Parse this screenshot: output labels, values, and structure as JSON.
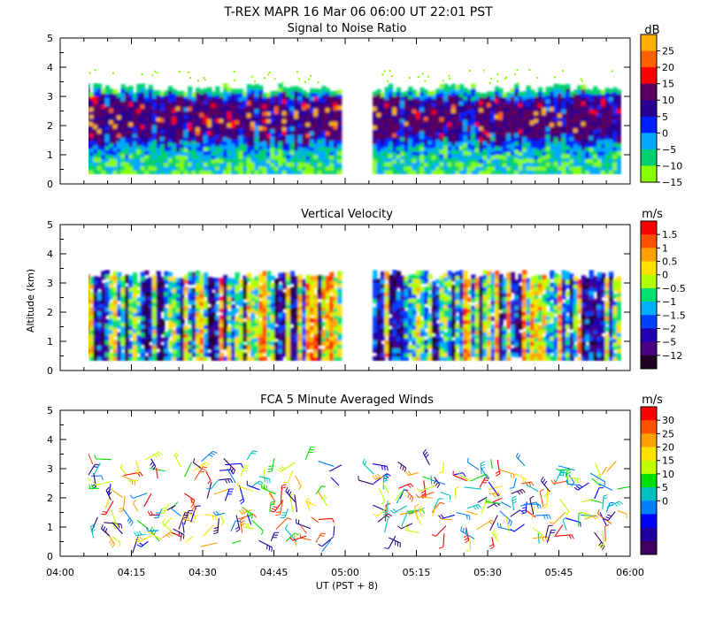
{
  "title": "T-REX   MAPR 16 Mar 06   06:00 UT   22:01   PST",
  "xlabel": "UT  (PST + 8)",
  "ylabel": "Altitude  (km)",
  "x_ticks": [
    "04:00",
    "04:15",
    "04:30",
    "04:45",
    "05:00",
    "05:15",
    "05:30",
    "05:45",
    "06:00"
  ],
  "y_ticks": [
    "0",
    "1",
    "2",
    "3",
    "4",
    "5"
  ],
  "chart_data": [
    {
      "type": "heatmap",
      "title": "Signal to Noise Ratio",
      "unit": "dB",
      "ylim": [
        0,
        5
      ],
      "xlim_minutes": [
        0,
        120
      ],
      "data_gap_minutes": [
        60,
        65
      ],
      "colorbar_labels": [
        "25",
        "20",
        "15",
        "10",
        "5",
        "0",
        "−5",
        "−10",
        "−15"
      ],
      "colorbar_colors": [
        "#ffb000",
        "#ff6000",
        "#ff0000",
        "#5a0060",
        "#2a0090",
        "#0020ff",
        "#00a8ff",
        "#00d070",
        "#88ff00"
      ]
    },
    {
      "type": "heatmap",
      "title": "Vertical Velocity",
      "unit": "m/s",
      "ylim": [
        0,
        5
      ],
      "xlim_minutes": [
        0,
        120
      ],
      "data_gap_minutes": [
        60,
        65
      ],
      "colorbar_labels": [
        "1.5",
        "1",
        "0.5",
        "0",
        "−0.5",
        "−1",
        "−1.5",
        "−2",
        "−5",
        "−12"
      ],
      "colorbar_colors": [
        "#ff0000",
        "#ff5000",
        "#ffa000",
        "#ffe000",
        "#b0ff00",
        "#00e070",
        "#00b0ff",
        "#0040ff",
        "#2000b0",
        "#4a0080",
        "#200020"
      ]
    },
    {
      "type": "scatter",
      "title": "FCA 5 Minute Averaged Winds",
      "unit": "m/s",
      "ylim": [
        0,
        5
      ],
      "xlim_minutes": [
        0,
        120
      ],
      "colorbar_labels": [
        "30",
        "25",
        "20",
        "15",
        "10",
        "5",
        "0"
      ],
      "colorbar_colors": [
        "#ff0000",
        "#ff5000",
        "#ffa000",
        "#ffe000",
        "#c0ff00",
        "#00e000",
        "#00c0c0",
        "#0080ff",
        "#0000ff",
        "#2000a0",
        "#400060"
      ]
    }
  ]
}
